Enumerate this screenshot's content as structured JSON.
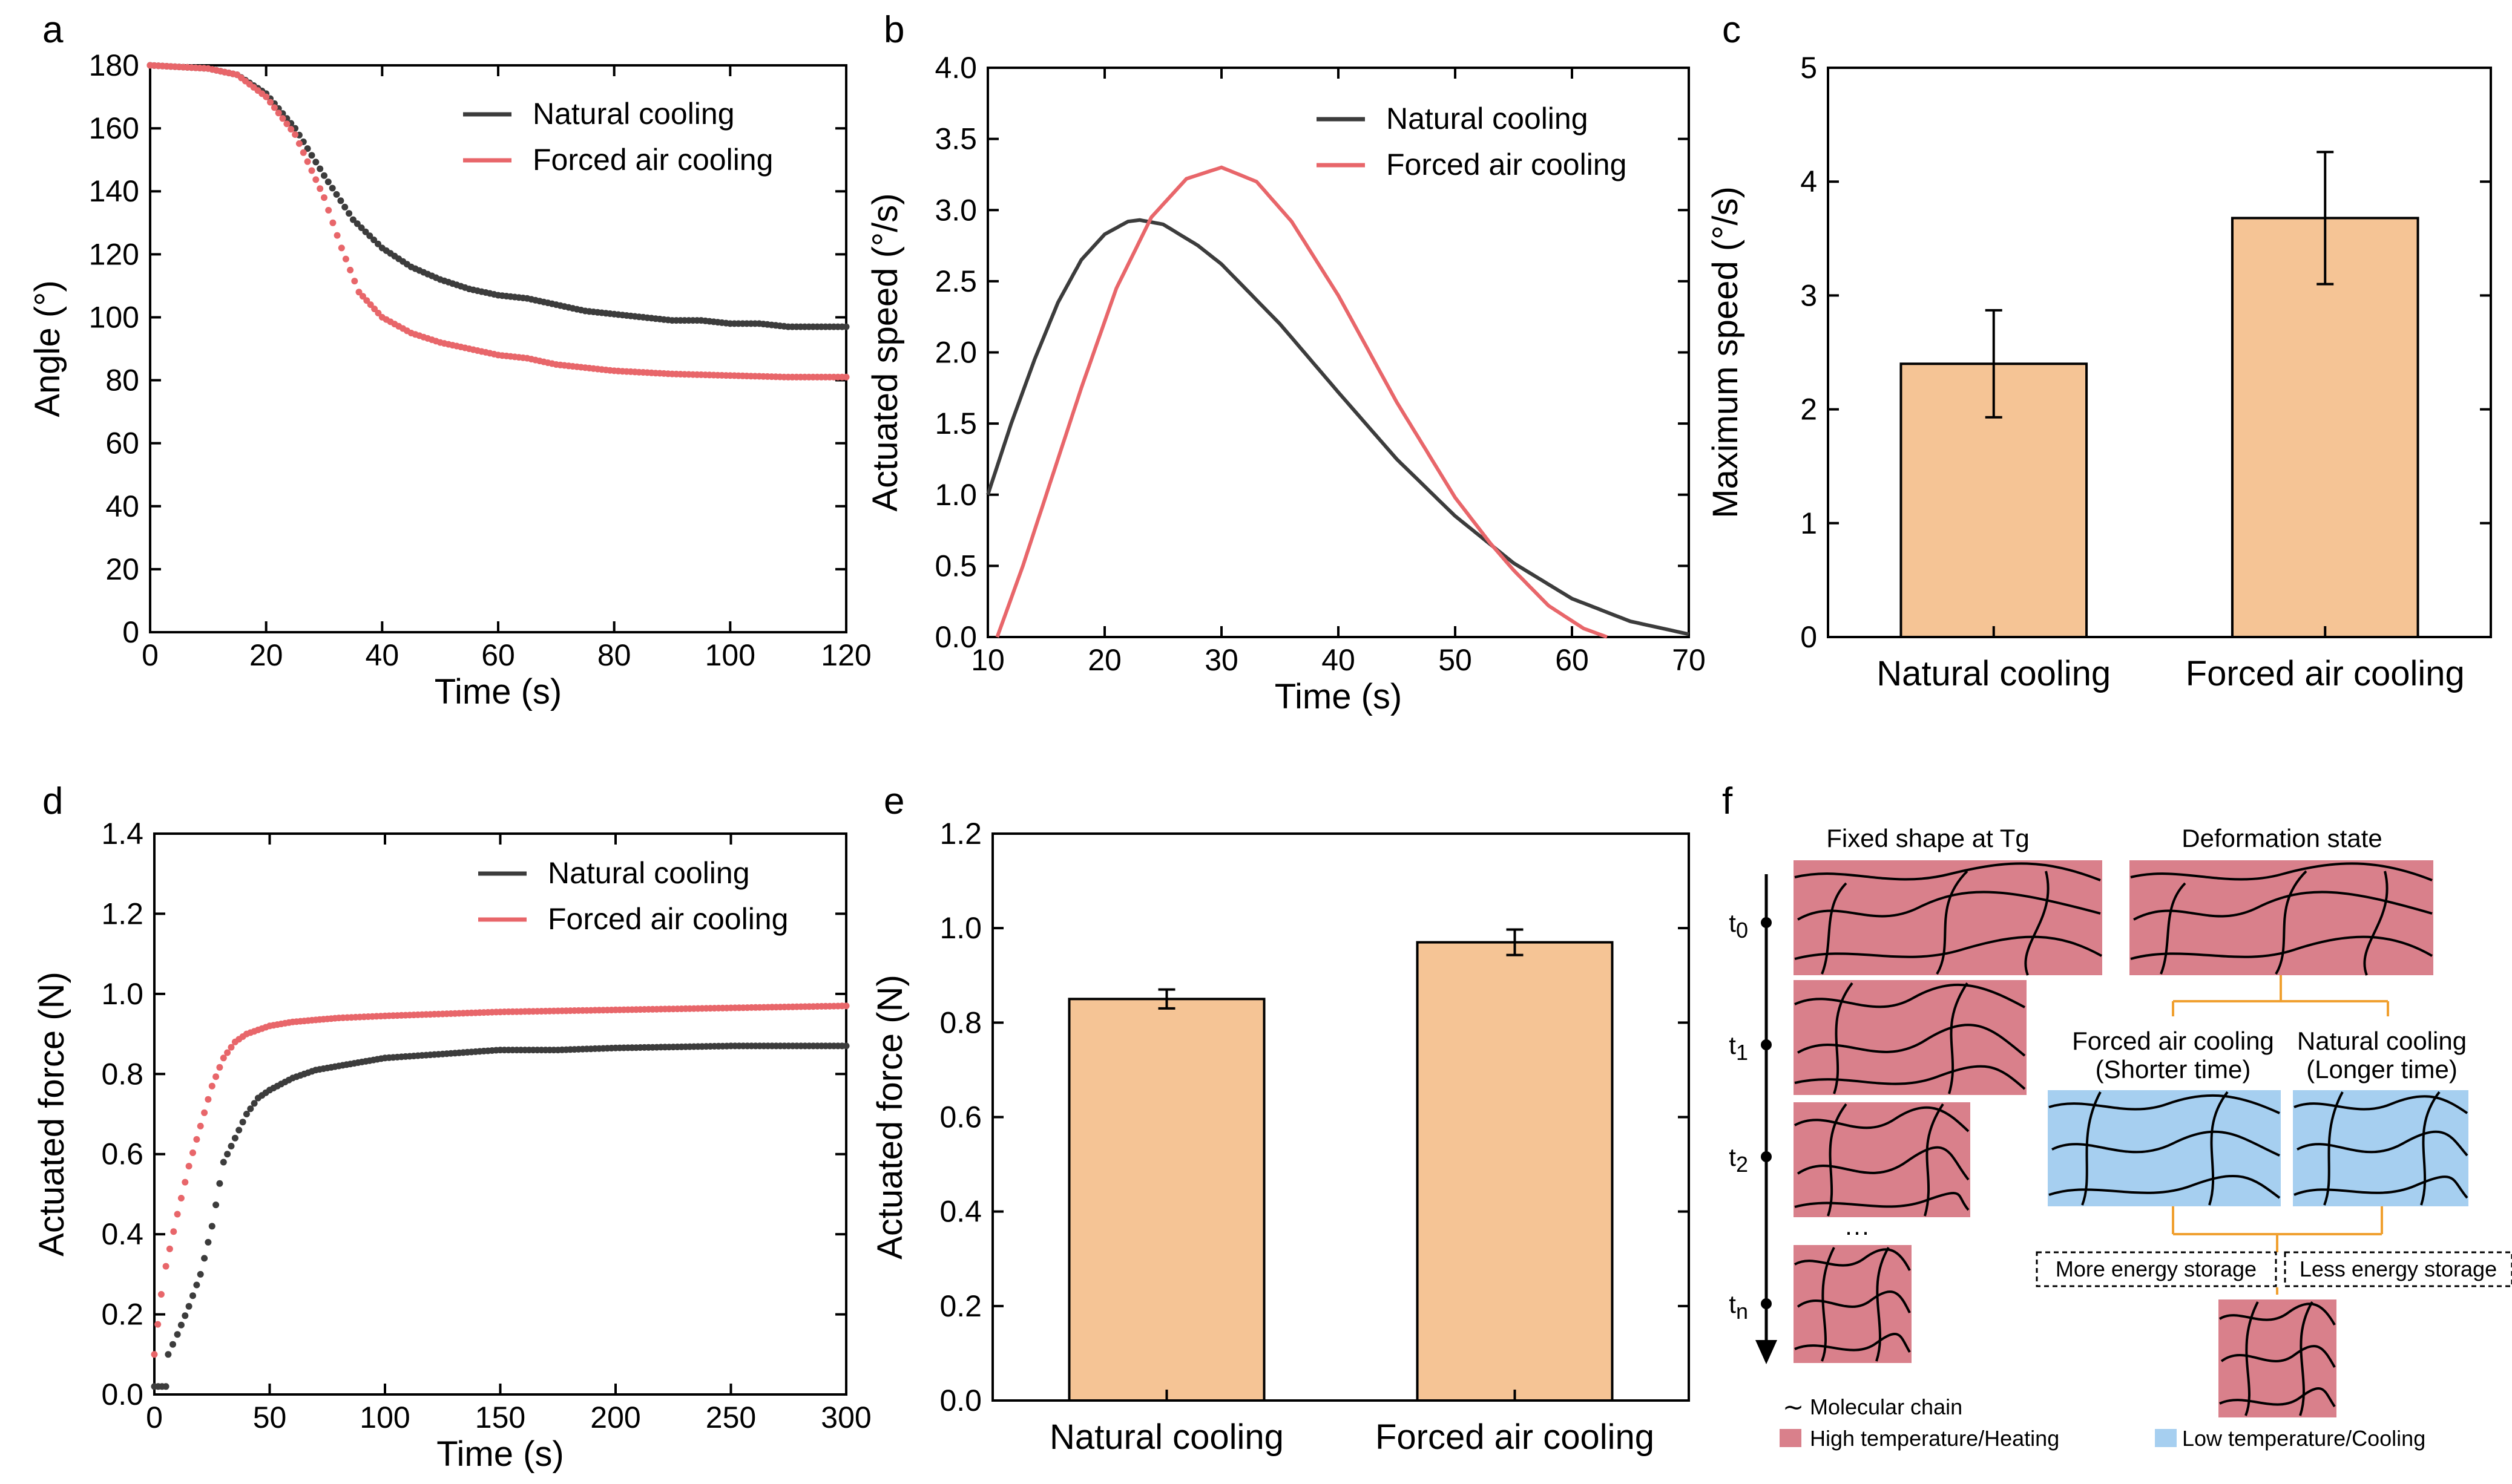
{
  "colors": {
    "natural": "#3c3c3c",
    "forced": "#e8666a",
    "bar_fill": "#f5c495",
    "heat_fill": "#d9808b",
    "cool_fill": "#a6cff0",
    "connector": "#f0a030"
  },
  "chart_data": [
    {
      "panel": "a",
      "type": "scatter",
      "xlabel": "Time (s)",
      "ylabel": "Angle (°)",
      "xlim": [
        0,
        120
      ],
      "ylim": [
        0,
        180
      ],
      "xticks": [
        "0",
        "20",
        "40",
        "60",
        "80",
        "100",
        "120"
      ],
      "yticks": [
        "0",
        "20",
        "40",
        "60",
        "80",
        "100",
        "120",
        "140",
        "160",
        "180"
      ],
      "series": [
        {
          "name": "Natural cooling",
          "points": [
            [
              0,
              180
            ],
            [
              5,
              179.5
            ],
            [
              10,
              179
            ],
            [
              15,
              177
            ],
            [
              20,
              171
            ],
            [
              25,
              160
            ],
            [
              30,
              145
            ],
            [
              35,
              131
            ],
            [
              40,
              122
            ],
            [
              45,
              116
            ],
            [
              50,
              112
            ],
            [
              55,
              109
            ],
            [
              60,
              107
            ],
            [
              65,
              106
            ],
            [
              70,
              104
            ],
            [
              75,
              102
            ],
            [
              80,
              101
            ],
            [
              85,
              100
            ],
            [
              90,
              99
            ],
            [
              95,
              99
            ],
            [
              100,
              98
            ],
            [
              105,
              98
            ],
            [
              110,
              97
            ],
            [
              115,
              97
            ],
            [
              120,
              97
            ]
          ]
        },
        {
          "name": "Forced air cooling",
          "points": [
            [
              0,
              180
            ],
            [
              5,
              179.5
            ],
            [
              10,
              179
            ],
            [
              15,
              177
            ],
            [
              20,
              170
            ],
            [
              25,
              158
            ],
            [
              30,
              138
            ],
            [
              33,
              122
            ],
            [
              36,
              108
            ],
            [
              40,
              100
            ],
            [
              45,
              95
            ],
            [
              50,
              92
            ],
            [
              55,
              90
            ],
            [
              60,
              88
            ],
            [
              65,
              87
            ],
            [
              70,
              85
            ],
            [
              75,
              84
            ],
            [
              80,
              83
            ],
            [
              90,
              82
            ],
            [
              100,
              81.5
            ],
            [
              110,
              81
            ],
            [
              120,
              81
            ]
          ]
        }
      ]
    },
    {
      "panel": "b",
      "type": "line",
      "xlabel": "Time (s)",
      "ylabel": "Actuated speed (°/s)",
      "xlim": [
        10,
        70
      ],
      "ylim": [
        0,
        4.0
      ],
      "xticks": [
        "10",
        "20",
        "30",
        "40",
        "50",
        "60",
        "70"
      ],
      "yticks": [
        "0.0",
        "0.5",
        "1.0",
        "1.5",
        "2.0",
        "2.5",
        "3.0",
        "3.5",
        "4.0"
      ],
      "series": [
        {
          "name": "Natural cooling",
          "points": [
            [
              10,
              1.0
            ],
            [
              12,
              1.5
            ],
            [
              14,
              1.95
            ],
            [
              16,
              2.35
            ],
            [
              18,
              2.65
            ],
            [
              20,
              2.83
            ],
            [
              22,
              2.92
            ],
            [
              23,
              2.93
            ],
            [
              25,
              2.9
            ],
            [
              28,
              2.75
            ],
            [
              30,
              2.62
            ],
            [
              35,
              2.2
            ],
            [
              40,
              1.72
            ],
            [
              45,
              1.25
            ],
            [
              50,
              0.85
            ],
            [
              55,
              0.52
            ],
            [
              60,
              0.27
            ],
            [
              65,
              0.11
            ],
            [
              70,
              0.02
            ]
          ]
        },
        {
          "name": "Forced air cooling",
          "points": [
            [
              10.8,
              0.0
            ],
            [
              13,
              0.5
            ],
            [
              15,
              1.0
            ],
            [
              18,
              1.75
            ],
            [
              21,
              2.45
            ],
            [
              24,
              2.95
            ],
            [
              27,
              3.22
            ],
            [
              30,
              3.3
            ],
            [
              33,
              3.2
            ],
            [
              36,
              2.92
            ],
            [
              40,
              2.4
            ],
            [
              45,
              1.65
            ],
            [
              50,
              0.98
            ],
            [
              53,
              0.66
            ],
            [
              55,
              0.47
            ],
            [
              58,
              0.22
            ],
            [
              61,
              0.06
            ],
            [
              63,
              0.0
            ]
          ]
        }
      ]
    },
    {
      "panel": "c",
      "type": "bar",
      "xlabel": "",
      "ylabel": "Maximum speed (°/s)",
      "ylim": [
        0,
        5
      ],
      "yticks": [
        "0",
        "1",
        "2",
        "3",
        "4",
        "5"
      ],
      "categories": [
        "Natural cooling",
        "Forced air cooling"
      ],
      "values": [
        2.4,
        3.68
      ],
      "errors": [
        0.47,
        0.58
      ]
    },
    {
      "panel": "d",
      "type": "scatter",
      "xlabel": "Time (s)",
      "ylabel": "Actuated  force (N)",
      "xlim": [
        0,
        300
      ],
      "ylim": [
        0,
        1.4
      ],
      "xticks": [
        "0",
        "50",
        "100",
        "150",
        "200",
        "250",
        "300"
      ],
      "yticks": [
        "0.0",
        "0.2",
        "0.4",
        "0.6",
        "0.8",
        "1.0",
        "1.2",
        "1.4"
      ],
      "series": [
        {
          "name": "Natural cooling",
          "points": [
            [
              0,
              0.02
            ],
            [
              5,
              0.02
            ],
            [
              6,
              0.1
            ],
            [
              10,
              0.15
            ],
            [
              15,
              0.22
            ],
            [
              20,
              0.3
            ],
            [
              25,
              0.42
            ],
            [
              30,
              0.58
            ],
            [
              35,
              0.64
            ],
            [
              40,
              0.7
            ],
            [
              45,
              0.74
            ],
            [
              50,
              0.76
            ],
            [
              60,
              0.79
            ],
            [
              70,
              0.81
            ],
            [
              80,
              0.82
            ],
            [
              90,
              0.83
            ],
            [
              100,
              0.84
            ],
            [
              125,
              0.85
            ],
            [
              150,
              0.86
            ],
            [
              175,
              0.86
            ],
            [
              200,
              0.865
            ],
            [
              250,
              0.87
            ],
            [
              300,
              0.87
            ]
          ]
        },
        {
          "name": "Forced air cooling",
          "points": [
            [
              0,
              0.1
            ],
            [
              3,
              0.25
            ],
            [
              5,
              0.32
            ],
            [
              10,
              0.45
            ],
            [
              15,
              0.57
            ],
            [
              20,
              0.67
            ],
            [
              25,
              0.77
            ],
            [
              30,
              0.84
            ],
            [
              35,
              0.88
            ],
            [
              40,
              0.9
            ],
            [
              50,
              0.92
            ],
            [
              60,
              0.93
            ],
            [
              70,
              0.935
            ],
            [
              80,
              0.94
            ],
            [
              100,
              0.945
            ],
            [
              125,
              0.95
            ],
            [
              150,
              0.955
            ],
            [
              200,
              0.96
            ],
            [
              250,
              0.965
            ],
            [
              300,
              0.97
            ]
          ]
        }
      ]
    },
    {
      "panel": "e",
      "type": "bar",
      "xlabel": "",
      "ylabel": "Actuated force (N)",
      "ylim": [
        0,
        1.2
      ],
      "yticks": [
        "0.0",
        "0.2",
        "0.4",
        "0.6",
        "0.8",
        "1.0",
        "1.2"
      ],
      "categories": [
        "Natural cooling",
        "Forced air cooling"
      ],
      "values": [
        0.85,
        0.97
      ],
      "errors": [
        0.02,
        0.027
      ]
    }
  ],
  "panels": {
    "a": "a",
    "b": "b",
    "c": "c",
    "d": "d",
    "e": "e",
    "f": "f"
  },
  "diagram": {
    "fixed_title": "Fixed shape at Tg",
    "deform_title": "Deformation state",
    "t0_base": "t",
    "t0_sub": "0",
    "t1_base": "t",
    "t1_sub": "1",
    "t2_base": "t",
    "t2_sub": "2",
    "tn_base": "t",
    "tn_sub": "n",
    "ellipsis": "···",
    "forced_label": "Forced air cooling",
    "forced_sub": "(Shorter time)",
    "natural_label": "Natural cooling",
    "natural_sub": "(Longer time)",
    "more_storage": "More energy storage",
    "less_storage": "Less energy storage",
    "legend_chain_symbol": "∼",
    "legend_chain": "Molecular chain",
    "legend_high": "High temperature/Heating",
    "legend_low": "Low temperature/Cooling"
  }
}
